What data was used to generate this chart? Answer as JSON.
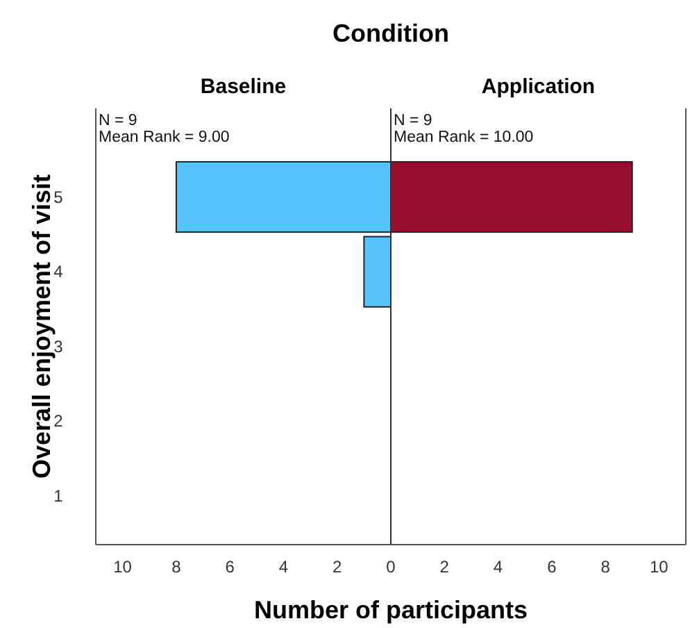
{
  "chart_data": [
    {
      "type": "bar",
      "orientation": "horizontal",
      "title": "Baseline",
      "subtitle": "Condition",
      "xlabel": "Number of participants",
      "ylabel": "Overall enjoyment of visit",
      "categories": [
        "5",
        "4",
        "3",
        "2",
        "1"
      ],
      "series": [
        {
          "color": "#55c4fb",
          "values": [
            8,
            1,
            0,
            0,
            0
          ]
        }
      ],
      "xlim": [
        11,
        0
      ],
      "xticks": [
        10,
        8,
        6,
        4,
        2
      ],
      "annotations": [
        "N = 9",
        "Mean Rank = 9.00"
      ],
      "grid": false
    },
    {
      "type": "bar",
      "orientation": "horizontal",
      "title": "Application",
      "categories": [
        "5",
        "4",
        "3",
        "2",
        "1"
      ],
      "series": [
        {
          "color": "#970e2f",
          "values": [
            9,
            0,
            0,
            0,
            0
          ]
        }
      ],
      "xlim": [
        0,
        11
      ],
      "xticks": [
        0,
        2,
        4,
        6,
        8,
        10
      ],
      "annotations": [
        "N = 9",
        "Mean Rank = 10.00"
      ],
      "tick_labels": "x",
      "grid": false
    }
  ]
}
